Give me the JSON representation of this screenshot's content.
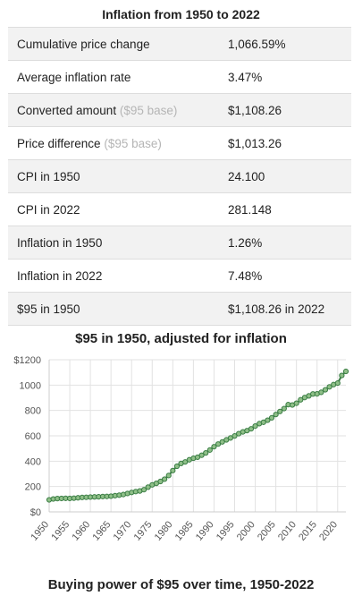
{
  "table": {
    "title": "Inflation from 1950 to 2022",
    "rows": [
      {
        "label": "Cumulative price change",
        "note": "",
        "value": "1,066.59%"
      },
      {
        "label": "Average inflation rate",
        "note": "",
        "value": "3.47%"
      },
      {
        "label": "Converted amount",
        "note": "($95 base)",
        "value": "$1,108.26"
      },
      {
        "label": "Price difference",
        "note": "($95 base)",
        "value": "$1,013.26"
      },
      {
        "label": "CPI in 1950",
        "note": "",
        "value": "24.100"
      },
      {
        "label": "CPI in 2022",
        "note": "",
        "value": "281.148"
      },
      {
        "label": "Inflation in 1950",
        "note": "",
        "value": "1.26%"
      },
      {
        "label": "Inflation in 2022",
        "note": "",
        "value": "7.48%"
      },
      {
        "label": "$95 in 1950",
        "note": "",
        "value": "$1,108.26 in 2022"
      }
    ]
  },
  "caption": "Buying power of $95 over time, 1950-2022",
  "chart_data": {
    "type": "line",
    "title": "$95 in 1950, adjusted for inflation",
    "xlabel": "",
    "ylabel": "",
    "xlim": [
      1950,
      2022
    ],
    "ylim": [
      0,
      1200
    ],
    "y_ticks": [
      0,
      200,
      400,
      600,
      800,
      1000,
      1200
    ],
    "y_tick_labels": [
      "$0",
      "200",
      "400",
      "600",
      "800",
      "1000",
      "$1200"
    ],
    "x_ticks": [
      1950,
      1955,
      1960,
      1965,
      1970,
      1975,
      1980,
      1985,
      1990,
      1995,
      2000,
      2005,
      2010,
      2015,
      2020
    ],
    "grid": true,
    "colors": {
      "line": "#3a7d44",
      "marker_fill": "#8fbf88",
      "grid": "#e2e2e2",
      "axis": "#cccccc"
    },
    "series": [
      {
        "x": [
          1950,
          1951,
          1952,
          1953,
          1954,
          1955,
          1956,
          1957,
          1958,
          1959,
          1960,
          1961,
          1962,
          1963,
          1964,
          1965,
          1966,
          1967,
          1968,
          1969,
          1970,
          1971,
          1972,
          1973,
          1974,
          1975,
          1976,
          1977,
          1978,
          1979,
          1980,
          1981,
          1982,
          1983,
          1984,
          1985,
          1986,
          1987,
          1988,
          1989,
          1990,
          1991,
          1992,
          1993,
          1994,
          1995,
          1996,
          1997,
          1998,
          1999,
          2000,
          2001,
          2002,
          2003,
          2004,
          2005,
          2006,
          2007,
          2008,
          2009,
          2010,
          2011,
          2012,
          2013,
          2014,
          2015,
          2016,
          2017,
          2018,
          2019,
          2020,
          2021,
          2022
        ],
        "values": [
          95,
          102,
          105,
          106,
          107,
          106,
          108,
          111,
          114,
          115,
          117,
          118,
          119,
          121,
          122,
          124,
          128,
          132,
          137,
          145,
          153,
          160,
          165,
          175,
          195,
          213,
          225,
          240,
          258,
          287,
          326,
          360,
          382,
          394,
          411,
          423,
          431,
          447,
          465,
          488,
          514,
          535,
          552,
          568,
          583,
          599,
          617,
          631,
          641,
          655,
          677,
          696,
          707,
          723,
          742,
          768,
          792,
          815,
          846,
          843,
          857,
          884,
          902,
          915,
          930,
          931,
          943,
          963,
          986,
          1004,
          1016,
          1076,
          1108
        ]
      }
    ]
  }
}
